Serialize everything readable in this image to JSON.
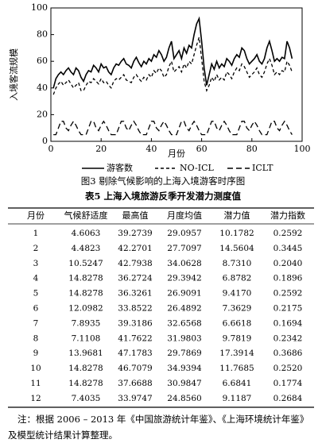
{
  "chart_data": {
    "type": "line",
    "ylabel": "入境客流规模",
    "xlabel": "月份",
    "xlim": [
      0,
      100
    ],
    "xticks": [
      0,
      20,
      40,
      60,
      80,
      100
    ],
    "ylim": [
      0,
      100
    ],
    "yticks": [
      0,
      20,
      40,
      60,
      80,
      100
    ],
    "x": [
      1,
      2,
      3,
      4,
      5,
      6,
      7,
      8,
      9,
      10,
      11,
      12,
      13,
      14,
      15,
      16,
      17,
      18,
      19,
      20,
      21,
      22,
      23,
      24,
      25,
      26,
      27,
      28,
      29,
      30,
      31,
      32,
      33,
      34,
      35,
      36,
      37,
      38,
      39,
      40,
      41,
      42,
      43,
      44,
      45,
      46,
      47,
      48,
      49,
      50,
      51,
      52,
      53,
      54,
      55,
      56,
      57,
      58,
      59,
      60,
      61,
      62,
      63,
      64,
      65,
      66,
      67,
      68,
      69,
      70,
      71,
      72,
      73,
      74,
      75,
      76,
      77,
      78,
      79,
      80,
      81,
      82,
      83,
      84,
      85,
      86,
      87,
      88,
      89,
      90,
      91,
      92,
      93,
      94,
      95,
      96
    ],
    "series": [
      {
        "name": "游客数",
        "color": "#000000",
        "values": [
          40,
          47,
          50,
          52,
          50,
          53,
          55,
          52,
          50,
          55,
          53,
          48,
          45,
          50,
          53,
          52,
          57,
          55,
          52,
          58,
          55,
          56,
          52,
          50,
          55,
          58,
          57,
          60,
          62,
          58,
          57,
          55,
          60,
          63,
          59,
          56,
          60,
          58,
          62,
          60,
          65,
          63,
          68,
          65,
          60,
          63,
          70,
          75,
          62,
          65,
          68,
          62,
          70,
          66,
          72,
          70,
          80,
          88,
          92,
          75,
          55,
          42,
          50,
          58,
          54,
          60,
          55,
          58,
          56,
          62,
          60,
          57,
          62,
          65,
          63,
          70,
          68,
          62,
          58,
          60,
          62,
          65,
          60,
          58,
          62,
          70,
          75,
          68,
          60,
          62,
          60,
          63,
          62,
          75,
          70,
          62
        ]
      },
      {
        "name": "NO-ICL",
        "color": "#000000",
        "values": [
          35,
          40,
          43,
          45,
          42,
          44,
          46,
          43,
          40,
          42,
          44,
          38,
          38,
          42,
          45,
          44,
          47,
          45,
          43,
          47,
          44,
          45,
          42,
          40,
          45,
          47,
          46,
          48,
          50,
          46,
          45,
          44,
          48,
          50,
          47,
          45,
          48,
          46,
          50,
          48,
          53,
          51,
          55,
          53,
          48,
          50,
          56,
          60,
          52,
          54,
          56,
          52,
          58,
          55,
          60,
          58,
          65,
          72,
          78,
          62,
          45,
          38,
          42,
          48,
          45,
          50,
          46,
          48,
          46,
          52,
          50,
          47,
          52,
          55,
          53,
          58,
          56,
          52,
          48,
          50,
          52,
          55,
          50,
          48,
          52,
          58,
          62,
          57,
          50,
          52,
          50,
          53,
          52,
          60,
          57,
          52
        ]
      },
      {
        "name": "ICLT",
        "color": "#000000",
        "values": [
          5,
          5,
          10,
          15,
          15,
          10,
          8,
          12,
          15,
          12,
          8,
          5,
          5,
          5,
          10,
          15,
          15,
          10,
          8,
          12,
          15,
          12,
          8,
          5,
          5,
          5,
          10,
          15,
          15,
          10,
          8,
          12,
          15,
          12,
          8,
          5,
          5,
          5,
          10,
          15,
          15,
          10,
          8,
          12,
          15,
          12,
          8,
          5,
          5,
          5,
          10,
          15,
          15,
          10,
          8,
          12,
          15,
          12,
          8,
          5,
          5,
          5,
          10,
          15,
          15,
          10,
          8,
          12,
          15,
          12,
          8,
          5,
          5,
          5,
          10,
          15,
          15,
          10,
          8,
          12,
          15,
          12,
          8,
          5,
          5,
          5,
          10,
          15,
          15,
          10,
          8,
          12,
          15,
          12,
          8,
          5
        ]
      }
    ]
  },
  "figure_caption": "图3  剔除气候影响的上海入境游客时序图",
  "table": {
    "title": "表5  上海入境旅游反季开发潜力测度值",
    "columns": [
      "月份",
      "气候舒适度",
      "最高值",
      "月度均值",
      "潜力值",
      "潜力指数"
    ],
    "rows": [
      [
        "1",
        "4.6063",
        "39.2739",
        "29.0957",
        "10.1782",
        "0.2592"
      ],
      [
        "2",
        "4.4823",
        "42.2701",
        "27.7097",
        "14.5604",
        "0.3445"
      ],
      [
        "3",
        "10.5247",
        "42.7938",
        "34.0628",
        "8.7310",
        "0.2040"
      ],
      [
        "4",
        "14.8278",
        "36.2724",
        "29.3942",
        "6.8782",
        "0.1896"
      ],
      [
        "5",
        "14.8278",
        "36.3261",
        "26.9091",
        "9.4170",
        "0.2592"
      ],
      [
        "6",
        "12.0982",
        "33.8522",
        "26.4892",
        "7.3629",
        "0.2175"
      ],
      [
        "7",
        "7.8935",
        "39.3186",
        "32.6568",
        "6.6618",
        "0.1694"
      ],
      [
        "8",
        "7.1108",
        "41.7622",
        "31.9803",
        "9.7819",
        "0.2342"
      ],
      [
        "9",
        "13.9681",
        "47.1783",
        "29.7869",
        "17.3914",
        "0.3686"
      ],
      [
        "10",
        "14.8278",
        "46.7079",
        "34.9394",
        "11.7685",
        "0.2520"
      ],
      [
        "11",
        "14.8278",
        "37.6688",
        "30.9847",
        "6.6841",
        "0.1774"
      ],
      [
        "12",
        "7.4035",
        "33.9747",
        "24.8560",
        "9.1187",
        "0.2684"
      ]
    ]
  },
  "note": "注：根据 2006 – 2013 年《中国旅游统计年鉴》、《上海环境统计年鉴》及模型统计结果计算整理。"
}
